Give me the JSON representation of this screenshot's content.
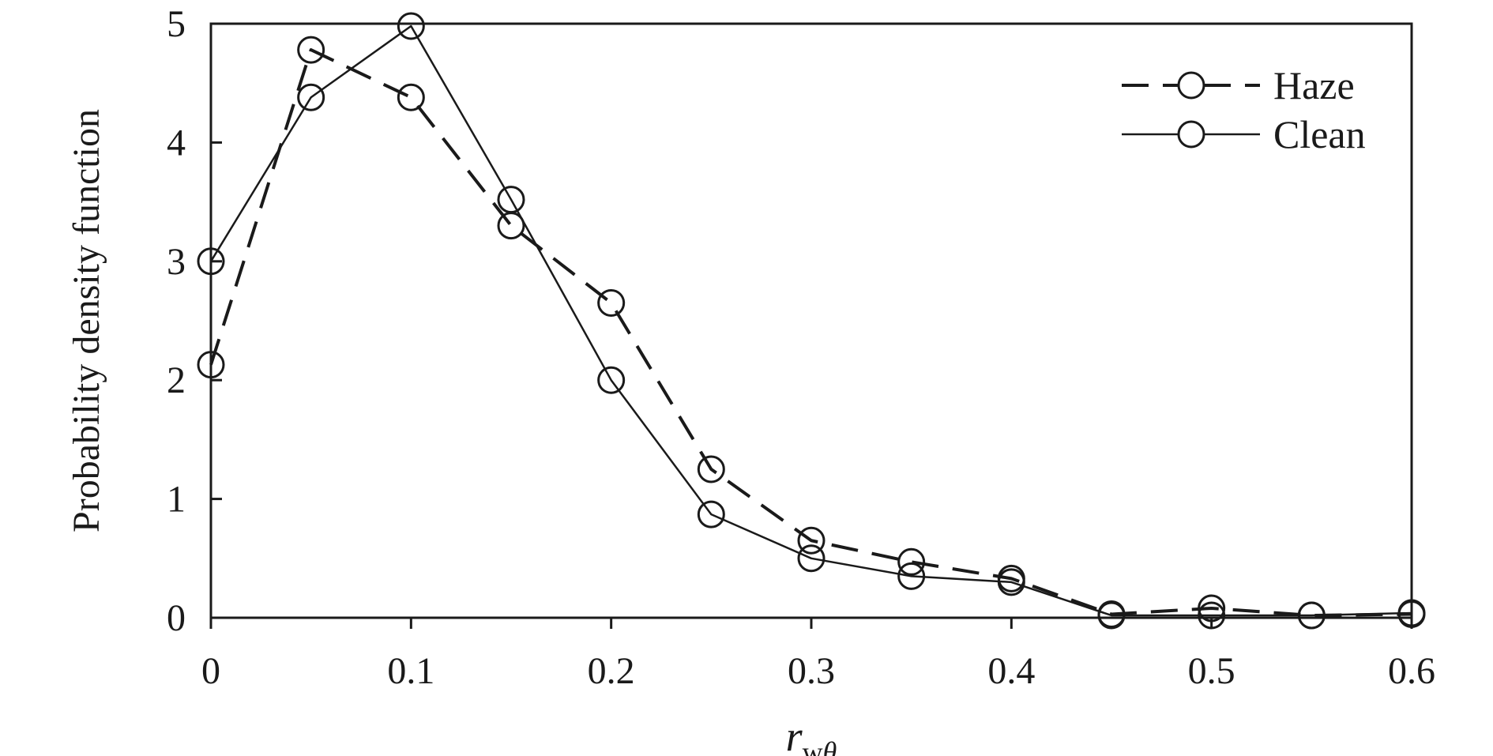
{
  "chart_data": {
    "type": "line",
    "xlabel": {
      "main": "r",
      "sub_prefix": "w",
      "sub_symbol": "θ"
    },
    "ylabel": "Probability density function",
    "xlim": [
      0,
      0.6
    ],
    "ylim": [
      0,
      5
    ],
    "x_ticks": [
      "0",
      "0.1",
      "0.2",
      "0.3",
      "0.4",
      "0.5",
      "0.6"
    ],
    "y_ticks": [
      "0",
      "1",
      "2",
      "3",
      "4",
      "5"
    ],
    "grid": false,
    "legend_position": "top-right",
    "x": [
      0,
      0.05,
      0.1,
      0.15,
      0.2,
      0.25,
      0.3,
      0.35,
      0.4,
      0.45,
      0.5,
      0.55,
      0.6
    ],
    "series": [
      {
        "name": "Haze",
        "line_style": "dashed",
        "marker": "open-circle",
        "color": "#1a1a1a",
        "values": [
          2.13,
          4.78,
          4.38,
          3.3,
          2.65,
          1.25,
          0.65,
          0.47,
          0.33,
          0.03,
          0.08,
          0.02,
          0.03
        ]
      },
      {
        "name": "Clean",
        "line_style": "solid",
        "marker": "open-circle",
        "color": "#1a1a1a",
        "values": [
          3.0,
          4.38,
          4.98,
          3.52,
          2.0,
          0.87,
          0.5,
          0.35,
          0.3,
          0.02,
          0.02,
          0.02,
          0.04
        ]
      }
    ]
  }
}
